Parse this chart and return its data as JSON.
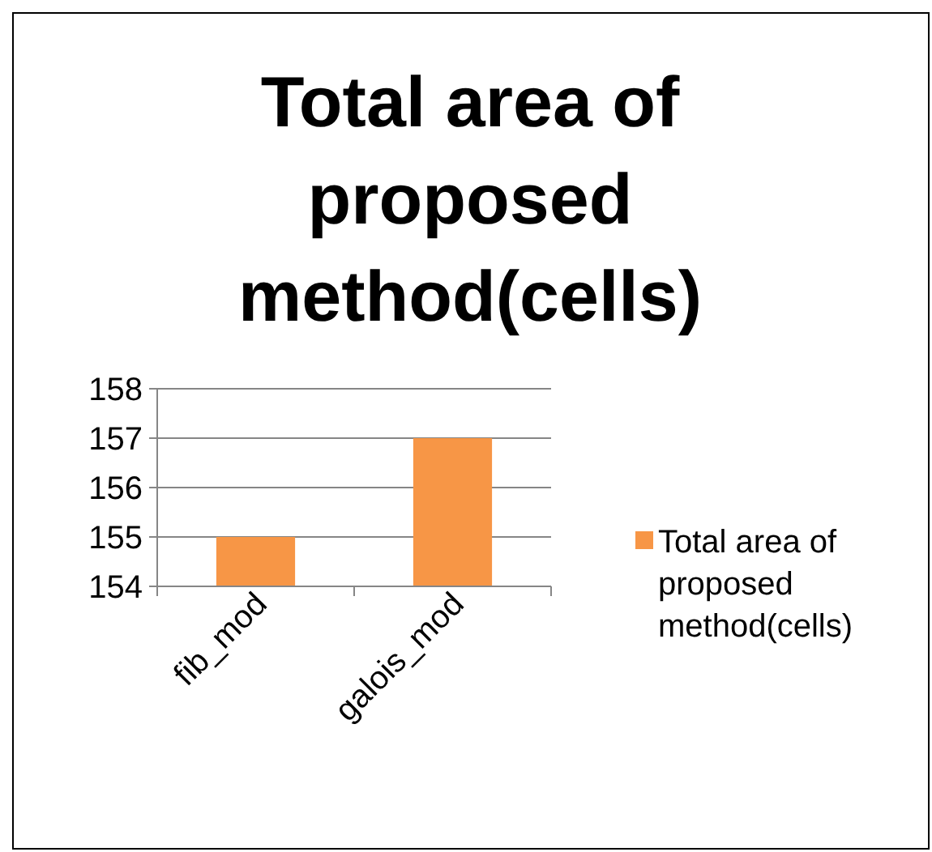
{
  "chart_data": {
    "type": "bar",
    "title": "Total area of proposed method(cells)",
    "categories": [
      "fib_mod",
      "galois_mod"
    ],
    "series": [
      {
        "name": "Total area of proposed method(cells)",
        "color": "#f79646",
        "values": [
          155,
          157
        ]
      }
    ],
    "ylim": [
      154,
      158
    ],
    "yticks": [
      154,
      155,
      156,
      157,
      158
    ],
    "grid": "y",
    "legend": "right"
  }
}
